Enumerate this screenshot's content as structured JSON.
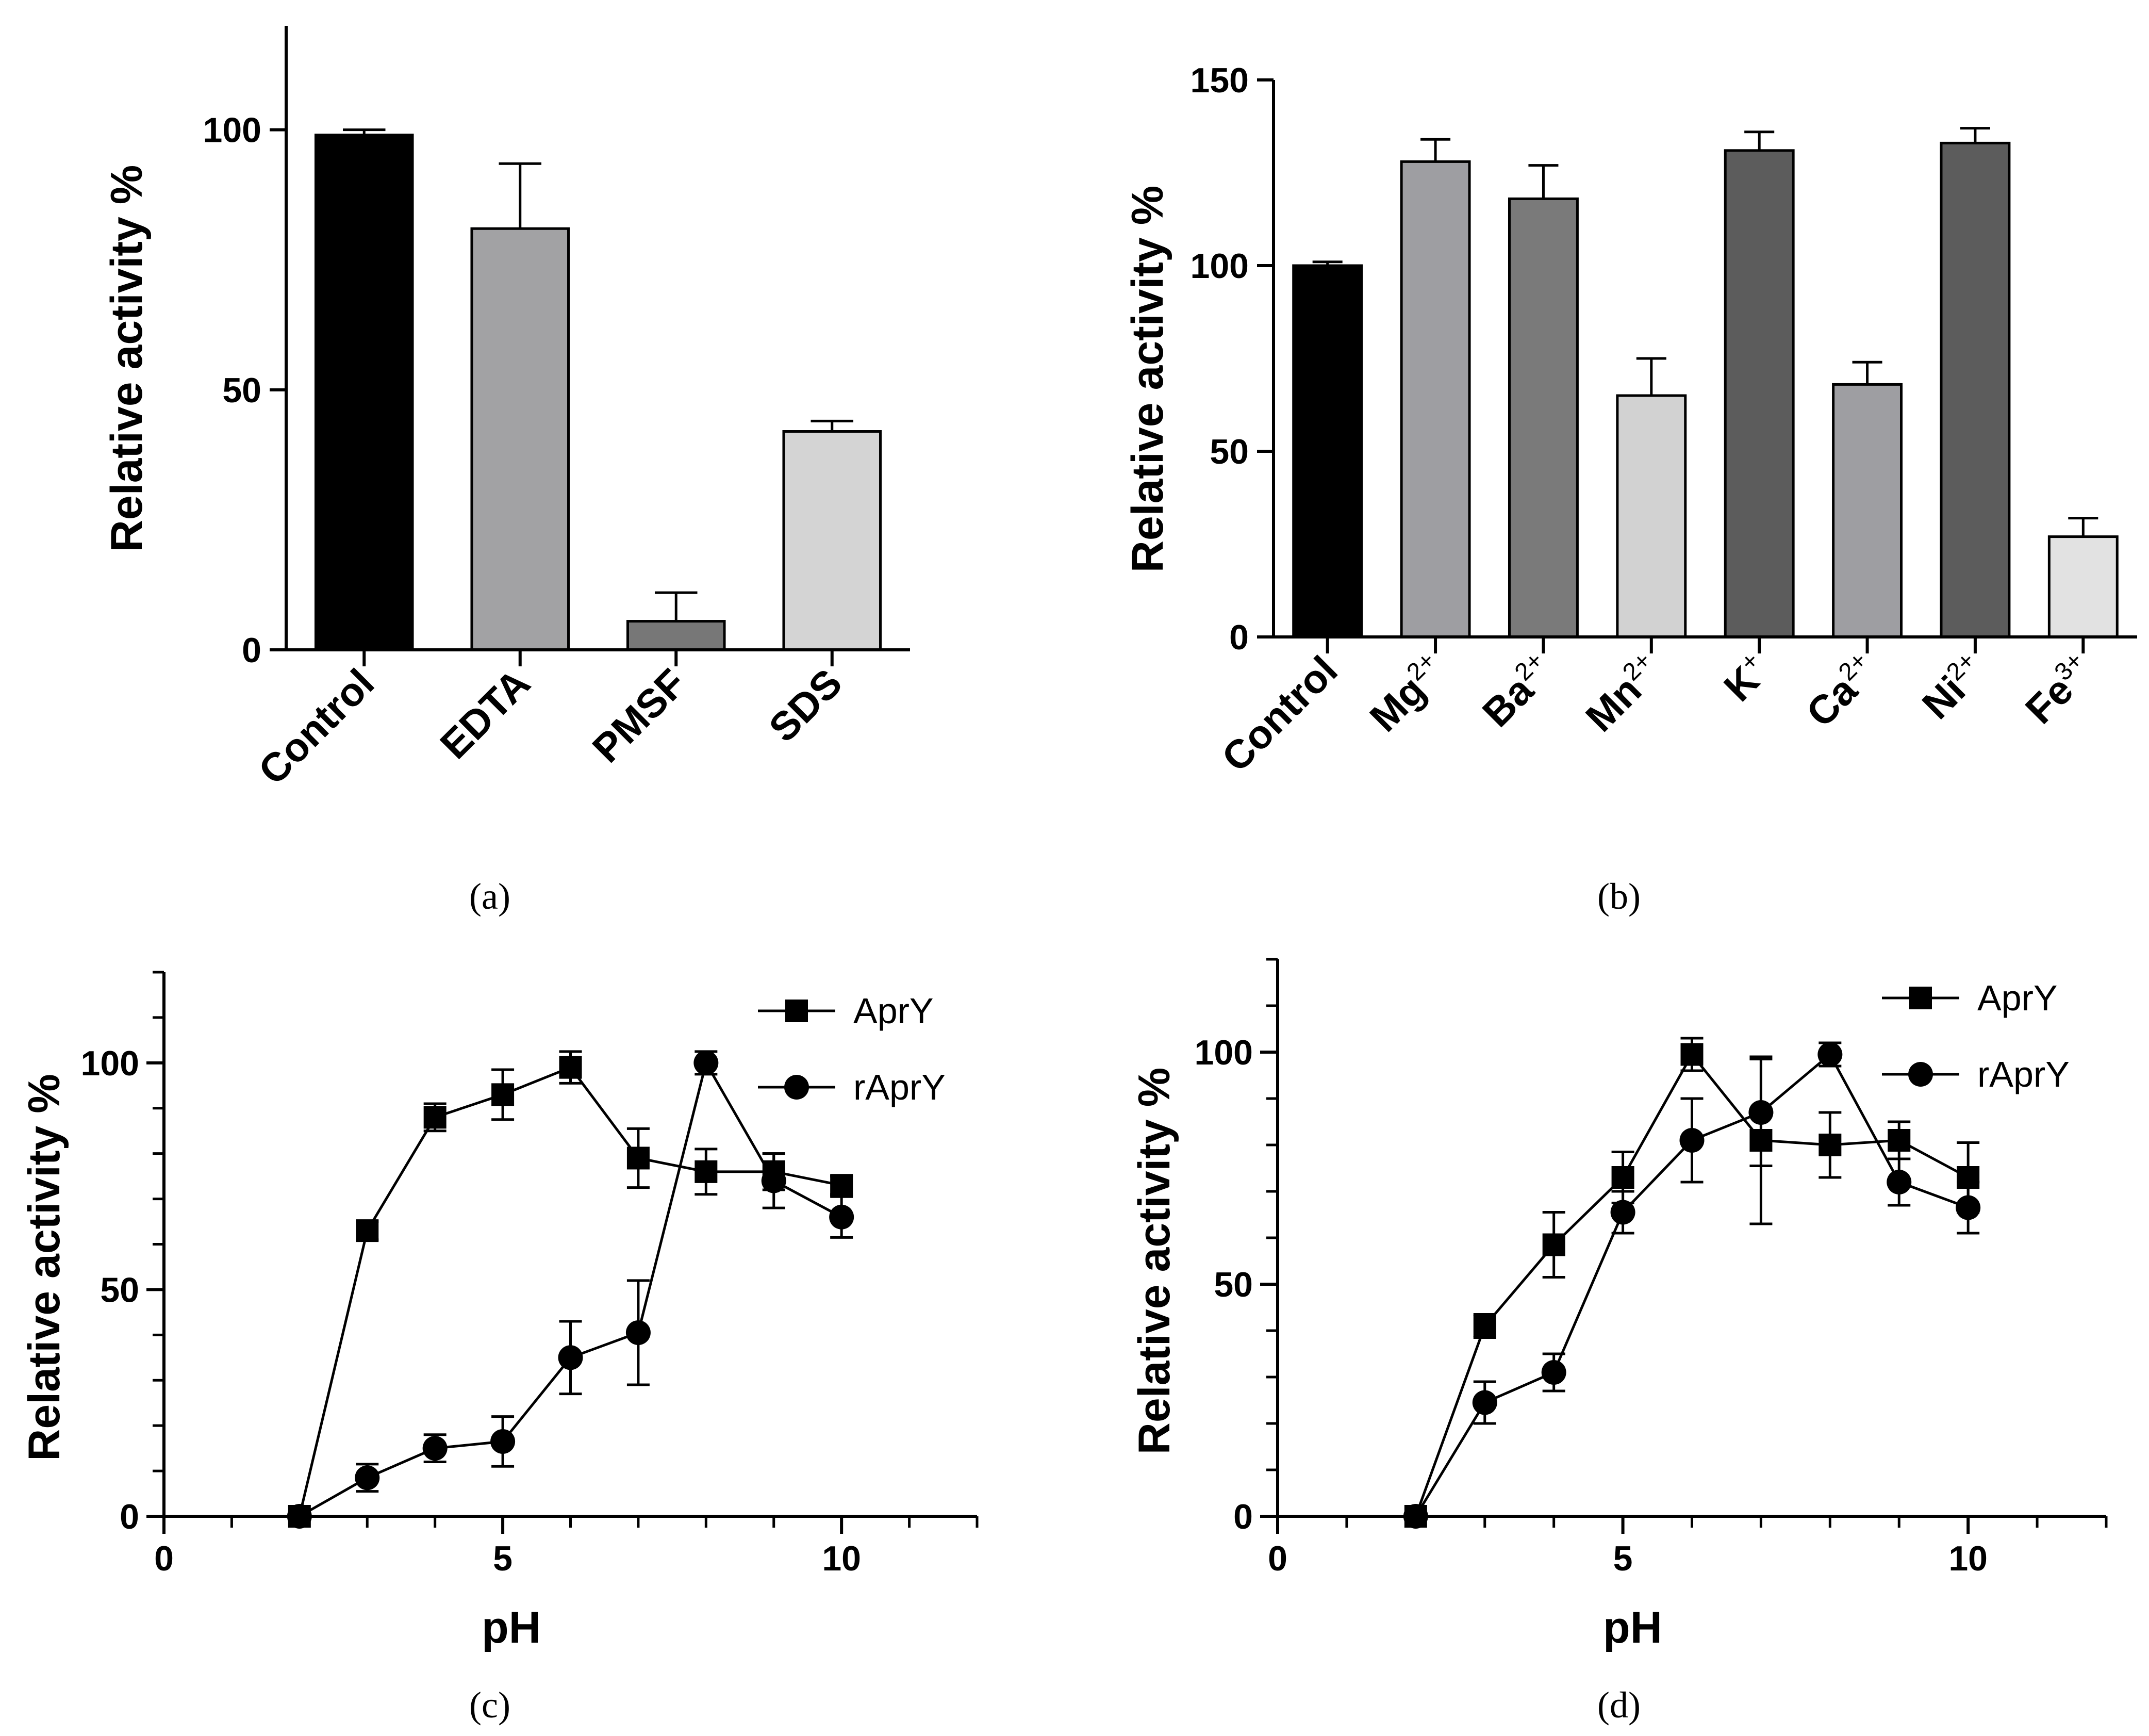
{
  "figure": {
    "panels": [
      "(a)",
      "(b)",
      "(c)",
      "(d)"
    ]
  },
  "chart_data": [
    {
      "id": "a",
      "type": "bar",
      "label": "(a)",
      "ylabel": "Relative activity %",
      "xlabel": "",
      "ylim": [
        0,
        120
      ],
      "yticks": [
        0,
        50,
        100
      ],
      "categories": [
        {
          "text": "Control",
          "sup": ""
        },
        {
          "text": "EDTA",
          "sup": ""
        },
        {
          "text": "PMSF",
          "sup": ""
        },
        {
          "text": "SDS",
          "sup": ""
        }
      ],
      "values": [
        99,
        81,
        5.5,
        42
      ],
      "errors": [
        1.0,
        12.5,
        5.5,
        2.0
      ],
      "colors": [
        "#000000",
        "#a2a2a4",
        "#777777",
        "#d4d4d4"
      ]
    },
    {
      "id": "b",
      "type": "bar",
      "label": "(b)",
      "ylabel": "Relative activity %",
      "xlabel": "",
      "ylim": [
        0,
        150
      ],
      "yticks": [
        0,
        50,
        100,
        150
      ],
      "categories": [
        {
          "text": "Control",
          "sup": ""
        },
        {
          "text": "Mg",
          "sup": "2+"
        },
        {
          "text": "Ba",
          "sup": "2+"
        },
        {
          "text": "Mn",
          "sup": "2+"
        },
        {
          "text": "K",
          "sup": "+"
        },
        {
          "text": "Ca",
          "sup": "2+"
        },
        {
          "text": "Ni",
          "sup": "2+"
        },
        {
          "text": "Fe",
          "sup": "3+"
        }
      ],
      "values": [
        100,
        128,
        118,
        65,
        131,
        68,
        133,
        27
      ],
      "errors": [
        1.0,
        6.0,
        9.0,
        10.0,
        5.0,
        6.0,
        4.0,
        5.0
      ],
      "colors": [
        "#000000",
        "#9e9ea2",
        "#7a7a7a",
        "#d2d2d2",
        "#5c5c5c",
        "#9e9ea2",
        "#5c5c5c",
        "#e2e2e2"
      ]
    },
    {
      "id": "c",
      "type": "line",
      "label": "(c)",
      "ylabel": "Relative activity %",
      "xlabel": "pH",
      "xlim": [
        0,
        12
      ],
      "ylim": [
        0,
        120
      ],
      "xticks": [
        0,
        5,
        10
      ],
      "yticks": [
        0,
        50,
        100
      ],
      "x": [
        2,
        3,
        4,
        5,
        6,
        7,
        8,
        9,
        10
      ],
      "series": [
        {
          "name": "AprY",
          "marker": "square",
          "values": [
            0,
            63,
            88,
            93,
            99,
            79,
            76,
            76,
            73
          ],
          "errors": [
            0,
            2,
            3,
            5.5,
            3.5,
            6.5,
            5,
            4,
            2
          ]
        },
        {
          "name": "rAprY",
          "marker": "circle",
          "values": [
            0,
            8.5,
            15,
            16.5,
            35,
            40.5,
            100,
            74,
            66
          ],
          "errors": [
            0,
            3,
            3,
            5.5,
            8,
            11.5,
            2.5,
            6,
            4.5
          ]
        }
      ]
    },
    {
      "id": "d",
      "type": "line",
      "label": "(d)",
      "ylabel": "Relative activity %",
      "xlabel": "pH",
      "xlim": [
        0,
        12
      ],
      "ylim": [
        0,
        120
      ],
      "xticks": [
        0,
        5,
        10
      ],
      "yticks": [
        0,
        50,
        100
      ],
      "x": [
        2,
        3,
        4,
        5,
        6,
        7,
        8,
        9,
        10
      ],
      "series": [
        {
          "name": "AprY",
          "marker": "square",
          "values": [
            0,
            41,
            58.5,
            73,
            99.5,
            81,
            80,
            81,
            73
          ],
          "errors": [
            0,
            2.5,
            7,
            5.5,
            3.5,
            18,
            7,
            4,
            7.5
          ]
        },
        {
          "name": "rAprY",
          "marker": "circle",
          "values": [
            0,
            24.5,
            31,
            65.5,
            81,
            87,
            99.5,
            72,
            66.5
          ],
          "errors": [
            0,
            4.5,
            4,
            4.5,
            9,
            11.5,
            2.5,
            5,
            5.5
          ]
        }
      ]
    }
  ]
}
